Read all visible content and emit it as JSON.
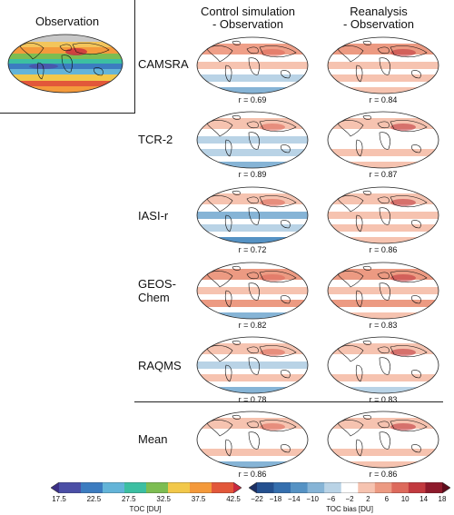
{
  "observation": {
    "title": "Observation"
  },
  "columns": [
    {
      "title_line1": "Control simulation",
      "title_line2": "- Observation"
    },
    {
      "title_line1": "Reanalysis",
      "title_line2": "- Observation"
    }
  ],
  "rows": [
    {
      "label": "CAMSRA",
      "r_control": "r = 0.69",
      "r_reanalysis": "r = 0.84"
    },
    {
      "label": "TCR-2",
      "r_control": "r = 0.89",
      "r_reanalysis": "r = 0.87"
    },
    {
      "label": "IASI-r",
      "r_control": "r = 0.72",
      "r_reanalysis": "r = 0.86"
    },
    {
      "label": "GEOS-\nChem",
      "r_control": "r = 0.82",
      "r_reanalysis": "r = 0.83"
    },
    {
      "label": "RAQMS",
      "r_control": "r = 0.78",
      "r_reanalysis": "r = 0.83"
    },
    {
      "label": "Mean",
      "r_control": "r = 0.86",
      "r_reanalysis": "r = 0.86"
    }
  ],
  "colorbar_toc": {
    "label": "TOC [DU]",
    "ticks": [
      "17.5",
      "22.5",
      "27.5",
      "32.5",
      "37.5",
      "42.5"
    ],
    "colors": [
      "#3b2f86",
      "#4b4fa6",
      "#3c7cc0",
      "#63b4d8",
      "#3cbfa2",
      "#7dbd52",
      "#f2c84a",
      "#f4993a",
      "#e2573a",
      "#c82a3e"
    ]
  },
  "colorbar_bias": {
    "label": "TOC bias [DU]",
    "ticks": [
      "−22",
      "−18",
      "−14",
      "−10",
      "−6",
      "−2",
      "2",
      "6",
      "10",
      "14",
      "18"
    ],
    "colors": [
      "#1b2f63",
      "#24508f",
      "#356fae",
      "#5592c4",
      "#86b4d6",
      "#b9d3e6",
      "#ffffff",
      "#f6c3b0",
      "#ec9a82",
      "#dd6a5c",
      "#c23a3f",
      "#8e1a2b",
      "#5e0d1c"
    ]
  }
}
